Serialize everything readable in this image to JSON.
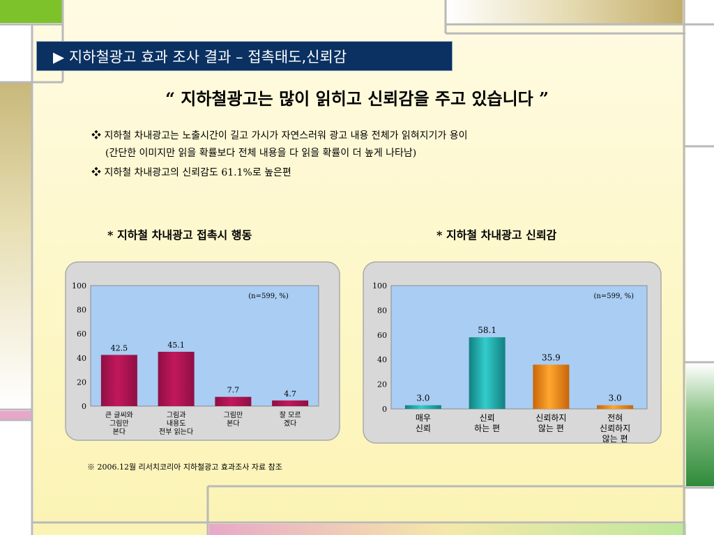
{
  "header": {
    "title": "▶ 지하철광고 효과 조사 결과 – 접촉태도,신뢰감"
  },
  "headline": "“ 지하철광고는 많이 읽히고 신뢰감을 주고 있습니다 ”",
  "bullets": {
    "b1_line1": "❖ 지하철 차내광고는 노출시간이 길고 가시가 자연스러워 광고 내용 전체가 읽혀지기가 용이",
    "b1_line2": "(간단한 이미지만 읽을 확률보다 전체 내용을 다 읽을 확률이 더 높게 나타남)",
    "b2": "❖ 지하철 차내광고의 신뢰감도 61.1%로 높은편"
  },
  "chart_titles": {
    "left": "* 지하철 차내광고 접촉시 행동",
    "right": "*  지하철 차내광고 신뢰감"
  },
  "footnote": "※ 2006.12월 리서치코리아 지하철광고 효과조사 자료 참조",
  "colors": {
    "title_bg": "#0a3162",
    "plot_bg": "#a9cdf3",
    "left_bar": "#c2185b",
    "right_bars": [
      "#17a6a6",
      "#17a6a6",
      "#ef8c14",
      "#ef8c14"
    ]
  },
  "chart_data": [
    {
      "type": "bar",
      "title": "* 지하철 차내광고 접촉시 행동",
      "note": "(n=599, %)",
      "categories": [
        [
          "큰 글씨와",
          "그림만",
          "본다"
        ],
        [
          "그림과",
          "내용도",
          "전부 읽는다"
        ],
        [
          "그림만",
          "본다"
        ],
        [
          "잘 모르",
          "겠다"
        ]
      ],
      "values": [
        42.5,
        45.1,
        7.7,
        4.7
      ],
      "value_labels": [
        "42.5",
        "45.1",
        "7.7",
        "4.7"
      ],
      "ylim": [
        0,
        100
      ],
      "yticks": [
        0,
        20,
        40,
        60,
        80,
        100
      ],
      "grid": false
    },
    {
      "type": "bar",
      "title": "*  지하철 차내광고 신뢰감",
      "note": "(n=599, %)",
      "categories": [
        [
          "매우",
          "신뢰"
        ],
        [
          "신뢰",
          "하는 편"
        ],
        [
          "신뢰하지",
          "않는 편"
        ],
        [
          "전혀",
          "신뢰하지",
          "않는 편"
        ]
      ],
      "values": [
        3.0,
        58.1,
        35.9,
        3.0
      ],
      "value_labels": [
        "3.0",
        "58.1",
        "35.9",
        "3.0"
      ],
      "ylim": [
        0,
        100
      ],
      "yticks": [
        0,
        20,
        40,
        60,
        80,
        100
      ],
      "grid": false
    }
  ]
}
